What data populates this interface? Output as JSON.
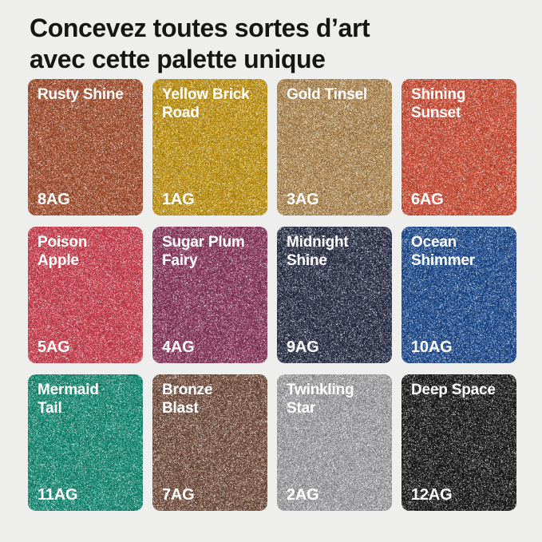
{
  "header": {
    "title": "Concevez toutes sortes d’art\navec cette palette unique",
    "title_color": "#161616"
  },
  "background_color": "#eeeeec",
  "label_color": "#ffffff",
  "palette": {
    "swatches": [
      {
        "name": "Rusty Shine",
        "code": "8AG",
        "base": "#a04e30",
        "light": "#e2a586",
        "dark": "#5a2410"
      },
      {
        "name": "Yellow Brick\nRoad",
        "code": "1AG",
        "base": "#bd8f13",
        "light": "#f0d466",
        "dark": "#6f5405"
      },
      {
        "name": "Gold Tinsel",
        "code": "3AG",
        "base": "#ab8450",
        "light": "#ecd9ad",
        "dark": "#5f3f1e"
      },
      {
        "name": "Shining\nSunset",
        "code": "6AG",
        "base": "#c84a35",
        "light": "#efa98c",
        "dark": "#7c2012"
      },
      {
        "name": "Poison\nApple",
        "code": "5AG",
        "base": "#c43b49",
        "light": "#f0a3ad",
        "dark": "#871c2a"
      },
      {
        "name": "Sugar Plum\nFairy",
        "code": "4AG",
        "base": "#833457",
        "light": "#d893b4",
        "dark": "#4d1a33"
      },
      {
        "name": "Midnight\nShine",
        "code": "9AG",
        "base": "#272c40",
        "light": "#9aa3bd",
        "dark": "#10131f"
      },
      {
        "name": "Ocean\nShimmer",
        "code": "10AG",
        "base": "#1c4787",
        "light": "#7fb0e8",
        "dark": "#0a1f4a"
      },
      {
        "name": "Mermaid\nTail",
        "code": "11AG",
        "base": "#11866f",
        "light": "#82d4c2",
        "dark": "#04493b"
      },
      {
        "name": "Bronze\nBlast",
        "code": "7AG",
        "base": "#6e4a3c",
        "light": "#e3cbb2",
        "dark": "#38231a"
      },
      {
        "name": "Twinkling\nStar",
        "code": "2AG",
        "base": "#9c9c9e",
        "light": "#e8e8ea",
        "dark": "#4c4c4e"
      },
      {
        "name": "Deep Space",
        "code": "12AG",
        "base": "#181818",
        "light": "#8a8a8a",
        "dark": "#000000"
      }
    ]
  }
}
